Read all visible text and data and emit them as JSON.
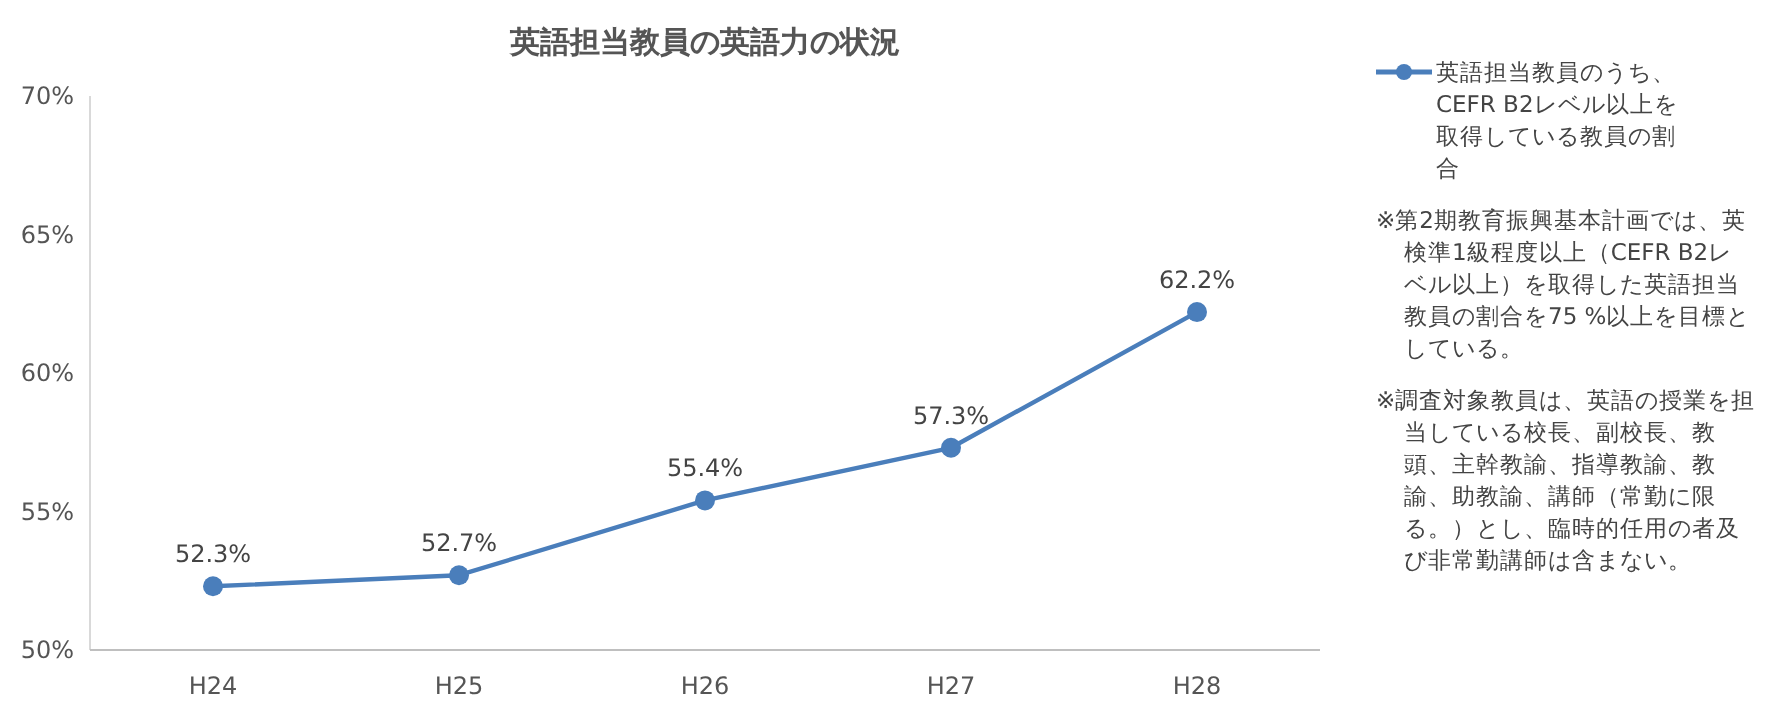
{
  "chart_data": {
    "type": "line",
    "title": "英語担当教員の英語力の状況",
    "categories": [
      "H24",
      "H25",
      "H26",
      "H27",
      "H28"
    ],
    "series": [
      {
        "name": "英語担当教員のうち、CEFR B2レベル以上を取得している教員の割合",
        "color": "#4a7ebb",
        "values": [
          52.3,
          52.7,
          55.4,
          57.3,
          62.2
        ],
        "value_labels": [
          "52.3%",
          "52.7%",
          "55.4%",
          "57.3%",
          "62.2%"
        ]
      }
    ],
    "ylim": [
      50,
      70
    ],
    "yticks": [
      {
        "value": 50,
        "label": "50%"
      },
      {
        "value": 55,
        "label": "55%"
      },
      {
        "value": 60,
        "label": "60%"
      },
      {
        "value": 65,
        "label": "65%"
      },
      {
        "value": 70,
        "label": "70%"
      }
    ],
    "marker": "circle",
    "line_style": "solid",
    "legend": "right",
    "grid": false,
    "annotations": [
      "※第2期教育振興基本計画では、英検準1級程度以上（CEFR B2レベル以上）を取得した英語担当教員の割合を75 %以上を目標としている。",
      "※調査対象教員は、英語の授業を担当している校長、副校長、教頭、主幹教諭、指導教諭、教諭、助教諭、講師（常勤に限る。）とし、臨時的任用の者及び非常勤講師は含まない。"
    ]
  }
}
